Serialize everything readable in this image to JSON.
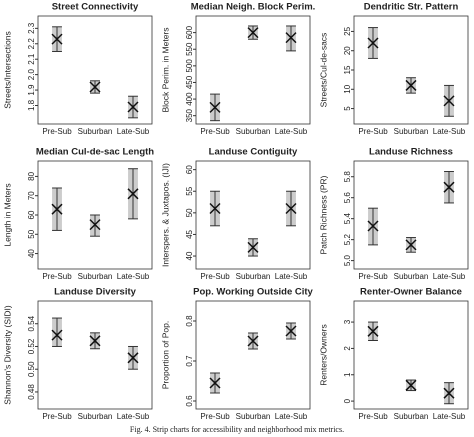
{
  "chart_data": [
    {
      "type": "strip",
      "title": "Street Connectivity",
      "ylabel": "Streets/Intersections",
      "categories": [
        "Pre-Sub",
        "Suburban",
        "Late-Sub"
      ],
      "values": [
        2.23,
        1.92,
        1.79
      ],
      "lower": [
        2.15,
        1.88,
        1.72
      ],
      "upper": [
        2.31,
        1.96,
        1.86
      ],
      "ylim": [
        1.68,
        2.38
      ],
      "yticks": [
        1.8,
        1.9,
        {
          "value": 2,
          "label": "2.0"
        },
        2.1,
        2.2,
        2.3
      ],
      "color": "#cccccc"
    },
    {
      "type": "strip",
      "title": "Median Neigh. Block Perim.",
      "ylabel": "Block Perim. in Meters",
      "categories": [
        "Pre-Sub",
        "Suburban",
        "Late-Sub"
      ],
      "values": [
        375,
        600,
        585
      ],
      "lower": [
        335,
        580,
        545
      ],
      "upper": [
        415,
        620,
        620
      ],
      "ylim": [
        325,
        650
      ],
      "yticks": [
        350,
        400,
        450,
        500,
        550,
        600
      ],
      "color": "#cccccc"
    },
    {
      "type": "strip",
      "title": "Dendritic Str. Pattern",
      "ylabel": "Streets/Cul-de-sacs",
      "categories": [
        "Pre-Sub",
        "Suburban",
        "Late-Sub"
      ],
      "values": [
        22,
        11,
        7
      ],
      "lower": [
        18,
        9,
        3
      ],
      "upper": [
        26,
        13,
        11
      ],
      "ylim": [
        1,
        29
      ],
      "yticks": [
        5,
        10,
        15,
        20,
        25
      ],
      "color": "#cccccc"
    },
    {
      "type": "strip",
      "title": "Median Cul-de-sac Length",
      "ylabel": "Length in Meters",
      "categories": [
        "Pre-Sub",
        "Suburban",
        "Late-Sub"
      ],
      "values": [
        63,
        55,
        71
      ],
      "lower": [
        52,
        49,
        58
      ],
      "upper": [
        74,
        60,
        84
      ],
      "ylim": [
        32,
        88
      ],
      "yticks": [
        40,
        50,
        60,
        70,
        80
      ],
      "color": "#cccccc"
    },
    {
      "type": "strip",
      "title": "Landuse Contiguity",
      "ylabel": "Interspers. & Juxtapos. (IJI)",
      "categories": [
        "Pre-Sub",
        "Suburban",
        "Late-Sub"
      ],
      "values": [
        51,
        42,
        51
      ],
      "lower": [
        47,
        40,
        47
      ],
      "upper": [
        55,
        44,
        55
      ],
      "ylim": [
        37,
        62
      ],
      "yticks": [
        40,
        45,
        50,
        55,
        60
      ],
      "color": "#cccccc"
    },
    {
      "type": "strip",
      "title": "Landuse Richness",
      "ylabel": "Patch Richness (PR)",
      "categories": [
        "Pre-Sub",
        "Suburban",
        "Late-Sub"
      ],
      "values": [
        5.33,
        5.15,
        5.7
      ],
      "lower": [
        5.15,
        5.08,
        5.55
      ],
      "upper": [
        5.5,
        5.22,
        5.85
      ],
      "ylim": [
        4.92,
        5.95
      ],
      "yticks": [
        {
          "value": 5,
          "label": "5.0"
        },
        5.2,
        5.4,
        5.6,
        5.8
      ],
      "color": "#cccccc"
    },
    {
      "type": "strip",
      "title": "Landuse Diversity",
      "ylabel": "Shannon's Diversity (SIDI)",
      "categories": [
        "Pre-Sub",
        "Suburban",
        "Late-Sub"
      ],
      "values": [
        0.53,
        0.525,
        0.51
      ],
      "lower": [
        0.52,
        0.518,
        0.5
      ],
      "upper": [
        0.545,
        0.532,
        0.52
      ],
      "ylim": [
        0.465,
        0.56
      ],
      "yticks": [
        0.48,
        {
          "value": 0.5,
          "label": "0.50"
        },
        0.52,
        0.54
      ],
      "color": "#cccccc"
    },
    {
      "type": "strip",
      "title": "Pop. Working Outside City",
      "ylabel": "Proportion of Pop.",
      "categories": [
        "Pre-Sub",
        "Suburban",
        "Late-Sub"
      ],
      "values": [
        0.645,
        0.75,
        0.775
      ],
      "lower": [
        0.62,
        0.73,
        0.755
      ],
      "upper": [
        0.67,
        0.77,
        0.795
      ],
      "ylim": [
        0.58,
        0.85
      ],
      "yticks": [
        0.6,
        0.7,
        0.8
      ],
      "color": "#cccccc"
    },
    {
      "type": "strip",
      "title": "Renter-Owner Balance",
      "ylabel": "Renters/Owners",
      "categories": [
        "Pre-Sub",
        "Suburban",
        "Late-Sub"
      ],
      "values": [
        2.65,
        0.6,
        0.3
      ],
      "lower": [
        2.3,
        0.4,
        -0.1
      ],
      "upper": [
        3.0,
        0.8,
        0.7
      ],
      "ylim": [
        -0.3,
        3.8
      ],
      "yticks": [
        0,
        1,
        2,
        3
      ],
      "color": "#cccccc"
    }
  ],
  "caption": "Fig. 4. Strip charts for accessibility and neighborhood mix metrics."
}
